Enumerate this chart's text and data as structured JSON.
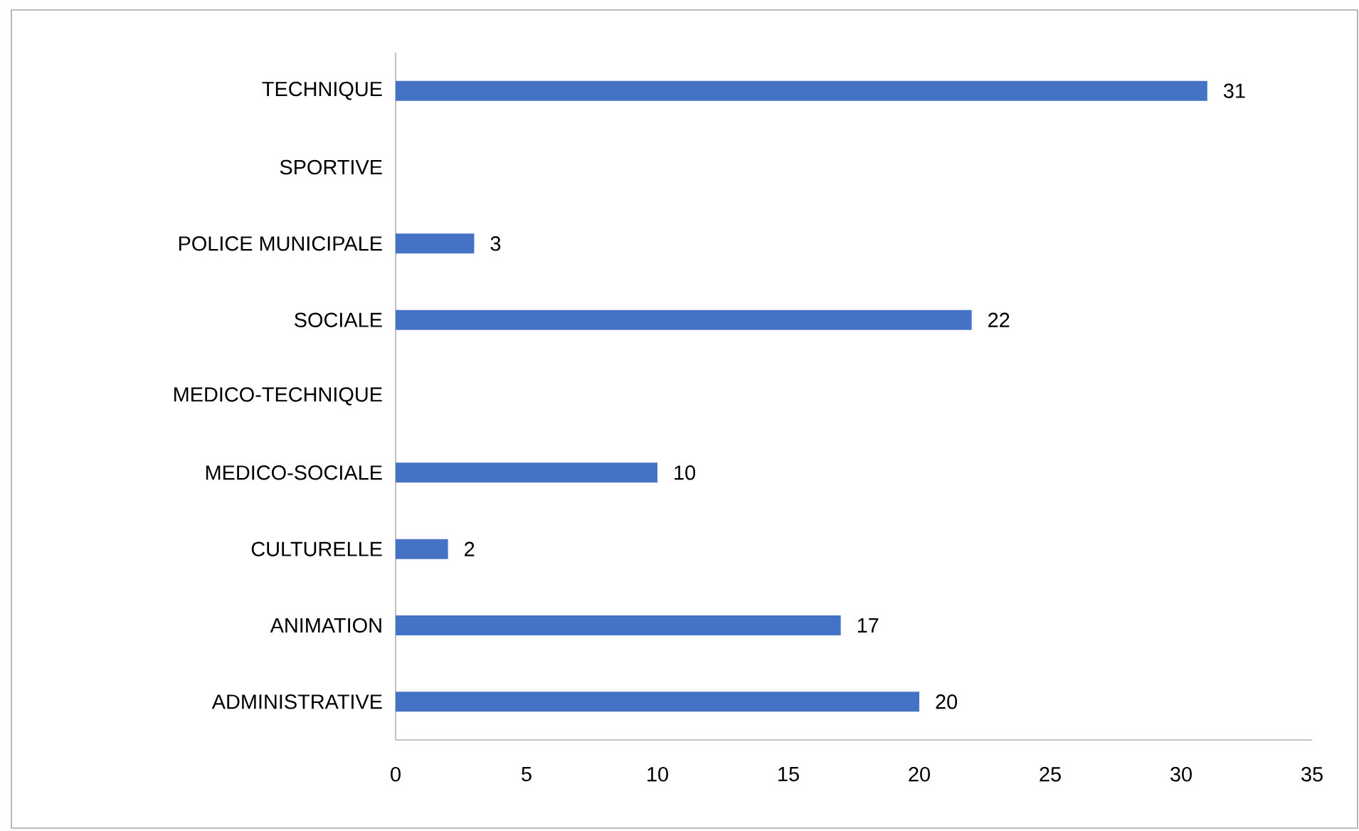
{
  "chart_data": {
    "type": "bar",
    "orientation": "horizontal",
    "categories": [
      "TECHNIQUE",
      "SPORTIVE",
      "POLICE MUNICIPALE",
      "SOCIALE",
      "MEDICO-TECHNIQUE",
      "MEDICO-SOCIALE",
      "CULTURELLE",
      "ANIMATION",
      "ADMINISTRATIVE"
    ],
    "values": [
      31,
      null,
      3,
      22,
      null,
      10,
      2,
      17,
      20
    ],
    "color": "#4472c4",
    "xlim": [
      0,
      35
    ],
    "xticks": [
      0,
      5,
      10,
      15,
      20,
      25,
      30,
      35
    ],
    "data_labels": true
  }
}
